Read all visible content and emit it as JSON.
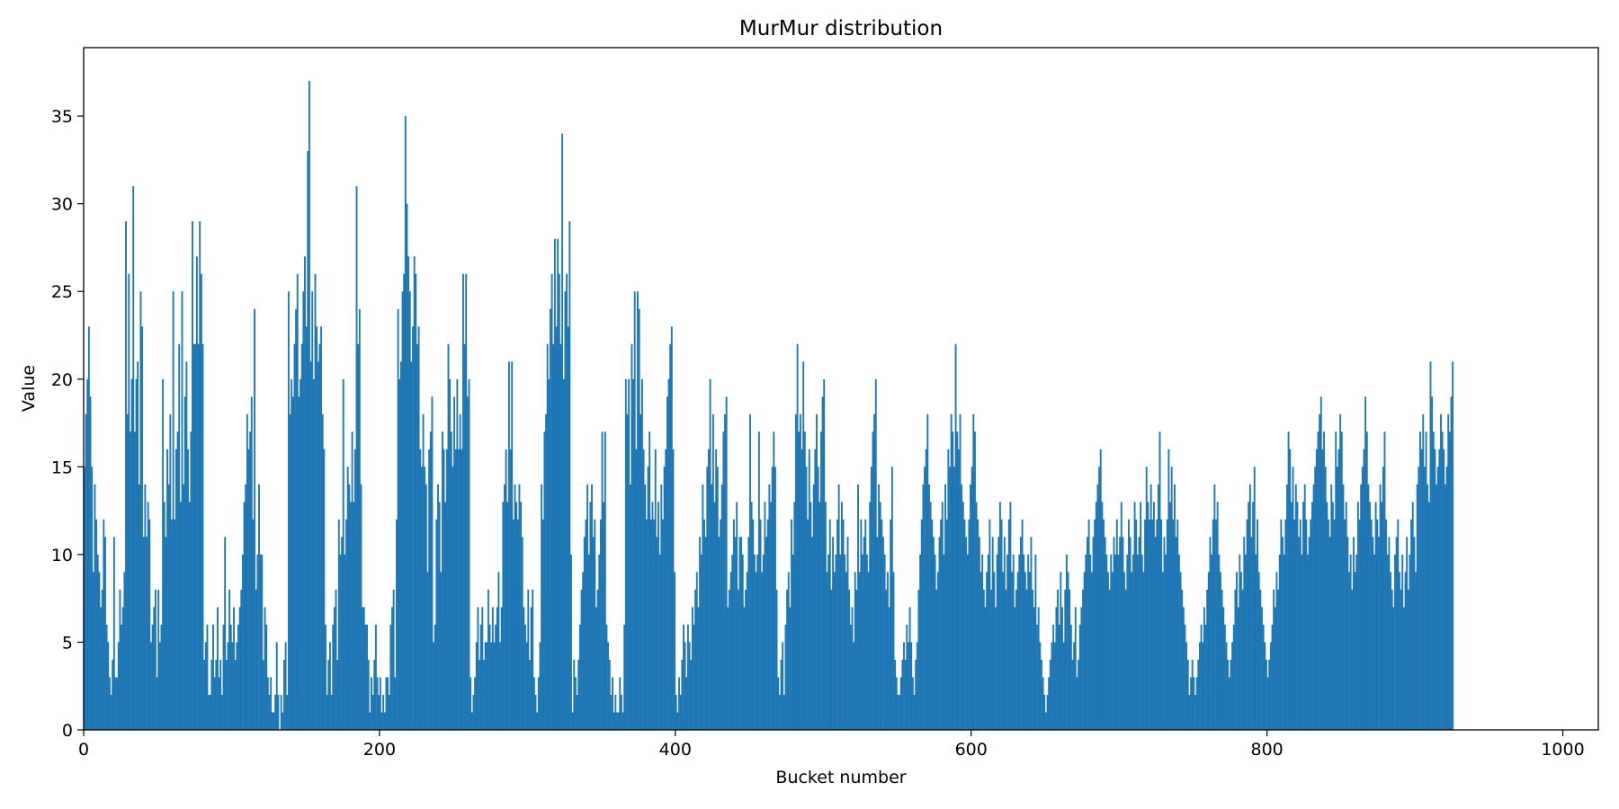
{
  "chart_data": {
    "type": "bar",
    "title": "MurMur distribution",
    "xlabel": "Bucket number",
    "ylabel": "Value",
    "xlim": [
      0,
      1024
    ],
    "ylim": [
      0,
      38.9
    ],
    "xticks": [
      0,
      200,
      400,
      600,
      800,
      1000
    ],
    "yticks": [
      0,
      5,
      10,
      15,
      20,
      25,
      30,
      35
    ],
    "grid": false,
    "legend": "none",
    "bar_color": "#1f77b4",
    "series": [
      {
        "values": [
          15,
          18,
          20,
          23,
          19,
          15,
          9,
          14,
          12,
          10,
          9,
          7,
          8,
          12,
          11,
          6,
          5,
          3,
          2,
          4,
          11,
          3,
          3,
          5,
          8,
          6,
          7,
          9,
          29,
          18,
          26,
          17,
          20,
          31,
          17,
          20,
          21,
          14,
          25,
          23,
          11,
          14,
          11,
          13,
          12,
          5,
          6,
          7,
          8,
          3,
          8,
          5,
          6,
          20,
          13,
          11,
          16,
          14,
          18,
          12,
          25,
          12,
          16,
          17,
          22,
          13,
          25,
          14,
          19,
          21,
          16,
          13,
          17,
          29,
          22,
          22,
          27,
          22,
          29,
          26,
          22,
          4,
          5,
          6,
          2,
          2,
          4,
          6,
          3,
          4,
          7,
          3,
          4,
          2,
          6,
          11,
          4,
          5,
          8,
          6,
          5,
          7,
          4,
          5,
          6,
          7,
          8,
          10,
          13,
          14,
          18,
          16,
          17,
          19,
          12,
          24,
          8,
          10,
          14,
          10,
          10,
          4,
          7,
          6,
          3,
          2,
          3,
          1,
          1,
          2,
          5,
          2,
          0,
          2,
          1,
          4,
          5,
          2,
          25,
          18,
          20,
          19,
          22,
          24,
          26,
          19,
          20,
          22,
          25,
          27,
          23,
          33,
          37,
          21,
          25,
          20,
          26,
          23,
          21,
          22,
          23,
          18,
          16,
          6,
          2,
          4,
          5,
          2,
          6,
          7,
          8,
          4,
          12,
          10,
          11,
          20,
          10,
          12,
          15,
          14,
          13,
          17,
          13,
          16,
          31,
          22,
          24,
          14,
          7,
          7,
          6,
          6,
          4,
          1,
          3,
          2,
          4,
          6,
          3,
          2,
          3,
          1,
          2,
          1,
          3,
          3,
          2,
          6,
          7,
          8,
          3,
          12,
          24,
          20,
          21,
          25,
          26,
          35,
          30,
          27,
          25,
          21,
          23,
          27,
          26,
          22,
          23,
          16,
          15,
          18,
          15,
          14,
          9,
          16,
          17,
          19,
          5,
          6,
          12,
          14,
          13,
          9,
          17,
          16,
          13,
          16,
          22,
          20,
          17,
          15,
          19,
          16,
          20,
          16,
          18,
          16,
          26,
          22,
          26,
          19,
          20,
          3,
          1,
          2,
          3,
          5,
          7,
          4,
          6,
          7,
          4,
          5,
          5,
          8,
          6,
          5,
          7,
          5,
          6,
          7,
          9,
          5,
          7,
          13,
          14,
          16,
          13,
          21,
          16,
          21,
          12,
          14,
          13,
          12,
          14,
          13,
          11,
          7,
          6,
          5,
          8,
          4,
          7,
          8,
          3,
          2,
          1,
          3,
          5,
          14,
          12,
          17,
          18,
          22,
          20,
          24,
          26,
          22,
          28,
          23,
          28,
          26,
          22,
          34,
          20,
          25,
          26,
          23,
          29,
          10,
          1,
          4,
          3,
          2,
          4,
          6,
          8,
          9,
          11,
          12,
          14,
          10,
          13,
          14,
          11,
          12,
          7,
          8,
          10,
          12,
          17,
          13,
          17,
          6,
          5,
          4,
          2,
          3,
          1,
          2,
          1,
          1,
          3,
          2,
          1,
          6,
          20,
          18,
          20,
          14,
          22,
          20,
          25,
          16,
          25,
          24,
          18,
          20,
          16,
          14,
          12,
          15,
          17,
          12,
          13,
          12,
          16,
          11,
          13,
          10,
          14,
          12,
          15,
          16,
          19,
          20,
          22,
          23,
          16,
          9,
          2,
          1,
          3,
          2,
          4,
          6,
          5,
          3,
          6,
          5,
          4,
          7,
          6,
          8,
          9,
          7,
          11,
          10,
          14,
          12,
          11,
          15,
          16,
          20,
          14,
          18,
          13,
          16,
          15,
          11,
          12,
          14,
          17,
          18,
          19,
          7,
          8,
          9,
          10,
          12,
          11,
          13,
          8,
          11,
          11,
          10,
          7,
          8,
          9,
          11,
          18,
          13,
          12,
          10,
          9,
          10,
          17,
          12,
          9,
          10,
          13,
          11,
          12,
          14,
          13,
          15,
          17,
          15,
          8,
          3,
          2,
          4,
          5,
          2,
          6,
          8,
          9,
          7,
          12,
          10,
          13,
          18,
          22,
          17,
          18,
          16,
          21,
          17,
          15,
          12,
          16,
          13,
          11,
          14,
          16,
          18,
          15,
          13,
          17,
          19,
          20,
          13,
          9,
          10,
          12,
          8,
          11,
          9,
          10,
          12,
          14,
          10,
          13,
          12,
          10,
          9,
          11,
          8,
          6,
          7,
          5,
          9,
          8,
          14,
          9,
          12,
          10,
          11,
          12,
          10,
          9,
          13,
          15,
          17,
          18,
          20,
          11,
          14,
          13,
          12,
          11,
          10,
          8,
          9,
          7,
          12,
          15,
          9,
          4,
          3,
          2,
          2,
          3,
          4,
          5,
          4,
          6,
          5,
          7,
          5,
          3,
          2,
          4,
          5,
          8,
          10,
          12,
          14,
          15,
          16,
          18,
          14,
          13,
          12,
          11,
          10,
          8,
          9,
          11,
          12,
          13,
          10,
          14,
          12,
          16,
          15,
          18,
          17,
          15,
          22,
          17,
          16,
          18,
          14,
          13,
          12,
          11,
          10,
          12,
          14,
          15,
          18,
          17,
          13,
          12,
          11,
          9,
          10,
          8,
          7,
          9,
          10,
          12,
          8,
          11,
          9,
          7,
          10,
          11,
          13,
          12,
          9,
          11,
          8,
          10,
          12,
          13,
          9,
          10,
          7,
          8,
          9,
          10,
          11,
          12,
          10,
          9,
          8,
          10,
          9,
          11,
          8,
          7,
          10,
          6,
          7,
          5,
          4,
          3,
          2,
          1,
          2,
          3,
          4,
          5,
          6,
          5,
          7,
          8,
          6,
          9,
          7,
          5,
          8,
          10,
          9,
          8,
          6,
          4,
          5,
          7,
          3,
          4,
          6,
          7,
          8,
          9,
          10,
          11,
          12,
          10,
          9,
          11,
          12,
          13,
          14,
          15,
          16,
          13,
          12,
          11,
          10,
          9,
          8,
          10,
          9,
          11,
          10,
          12,
          10,
          11,
          13,
          11,
          9,
          8,
          10,
          12,
          11,
          9,
          10,
          13,
          12,
          10,
          11,
          13,
          10,
          9,
          12,
          15,
          13,
          12,
          14,
          12,
          13,
          11,
          12,
          14,
          17,
          12,
          9,
          11,
          10,
          12,
          16,
          13,
          15,
          12,
          14,
          11,
          12,
          10,
          9,
          8,
          7,
          6,
          5,
          4,
          2,
          3,
          4,
          3,
          2,
          3,
          4,
          5,
          6,
          5,
          7,
          6,
          8,
          9,
          11,
          10,
          12,
          14,
          12,
          13,
          10,
          9,
          8,
          7,
          6,
          5,
          4,
          3,
          4,
          5,
          6,
          8,
          9,
          7,
          10,
          9,
          8,
          11,
          10,
          12,
          13,
          14,
          11,
          13,
          15,
          10,
          12,
          9,
          8,
          7,
          6,
          5,
          4,
          3,
          4,
          5,
          6,
          8,
          7,
          9,
          8,
          10,
          12,
          11,
          10,
          12,
          14,
          17,
          16,
          13,
          15,
          12,
          14,
          13,
          11,
          12,
          10,
          13,
          14,
          12,
          10,
          11,
          12,
          13,
          14,
          15,
          16,
          17,
          18,
          19,
          16,
          17,
          15,
          13,
          12,
          11,
          14,
          13,
          12,
          17,
          15,
          16,
          18,
          17,
          14,
          12,
          13,
          11,
          9,
          10,
          8,
          11,
          9,
          10,
          13,
          12,
          14,
          15,
          16,
          19,
          17,
          14,
          13,
          12,
          11,
          10,
          13,
          12,
          11,
          14,
          13,
          15,
          17,
          12,
          10,
          11,
          9,
          8,
          7,
          10,
          11,
          12,
          9,
          8,
          10,
          7,
          9,
          11,
          8,
          10,
          12,
          13,
          11,
          9,
          14,
          15,
          17,
          16,
          18,
          15,
          17,
          14,
          13,
          21,
          19,
          17,
          16,
          14,
          15,
          16,
          18,
          17,
          16,
          14,
          15,
          18,
          17,
          19,
          21
        ]
      }
    ]
  }
}
